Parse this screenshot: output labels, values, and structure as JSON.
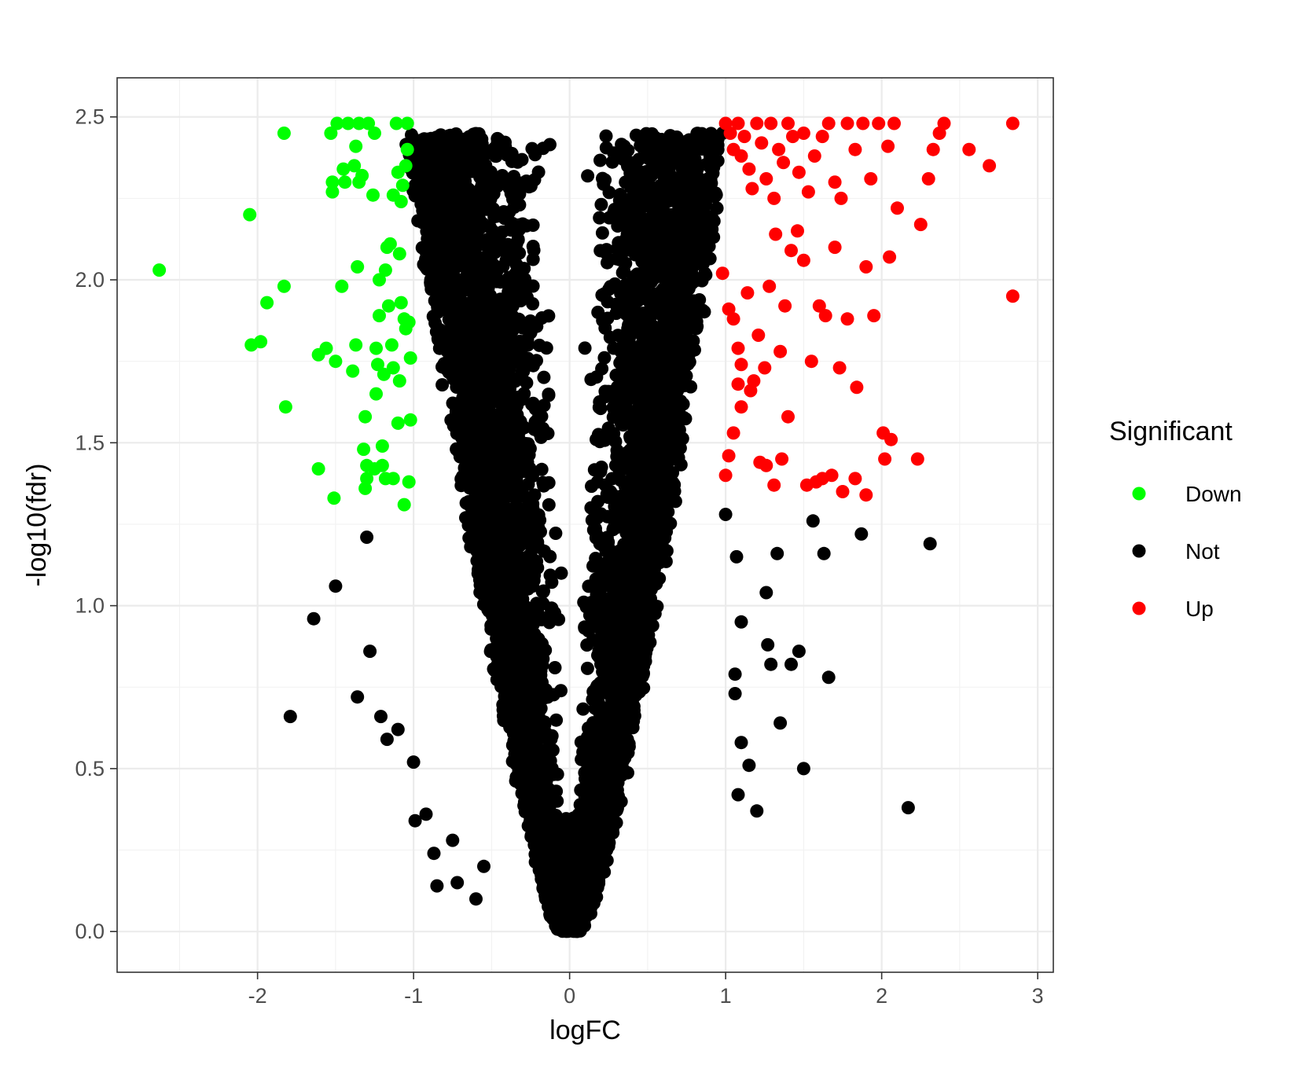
{
  "chart_data": {
    "type": "scatter",
    "title": "",
    "xlabel": "logFC",
    "ylabel": "-log10(fdr)",
    "xlim": [
      -2.9,
      3.1
    ],
    "ylim": [
      -0.125,
      2.62
    ],
    "x_ticks": [
      -2,
      -1,
      0,
      1,
      2,
      3
    ],
    "x_tick_labels": [
      "-2",
      "-1",
      "0",
      "1",
      "2",
      "3"
    ],
    "y_ticks": [
      0.0,
      0.5,
      1.0,
      1.5,
      2.0,
      2.5
    ],
    "y_tick_labels": [
      "0.0",
      "0.5",
      "1.0",
      "1.5",
      "2.0",
      "2.5"
    ],
    "grid": true,
    "legend": {
      "title": "Significant",
      "position": "right",
      "entries": [
        {
          "label": "Down",
          "color": "#00ff00"
        },
        {
          "label": "Not",
          "color": "#000000"
        },
        {
          "label": "Up",
          "color": "#ff0000"
        }
      ]
    },
    "series": [
      {
        "name": "Down",
        "color": "#00ff00",
        "points": [
          [
            -2.63,
            2.03
          ],
          [
            -2.05,
            2.2
          ],
          [
            -2.04,
            1.8
          ],
          [
            -1.98,
            1.81
          ],
          [
            -1.94,
            1.93
          ],
          [
            -1.83,
            2.45
          ],
          [
            -1.82,
            1.61
          ],
          [
            -1.83,
            1.98
          ],
          [
            -1.61,
            1.42
          ],
          [
            -1.61,
            1.77
          ],
          [
            -1.56,
            1.79
          ],
          [
            -1.53,
            2.45
          ],
          [
            -1.52,
            2.3
          ],
          [
            -1.52,
            2.27
          ],
          [
            -1.51,
            1.33
          ],
          [
            -1.5,
            1.75
          ],
          [
            -1.49,
            2.48
          ],
          [
            -1.46,
            1.98
          ],
          [
            -1.45,
            2.34
          ],
          [
            -1.44,
            2.3
          ],
          [
            -1.42,
            2.48
          ],
          [
            -1.39,
            1.72
          ],
          [
            -1.38,
            2.35
          ],
          [
            -1.37,
            1.8
          ],
          [
            -1.37,
            2.41
          ],
          [
            -1.36,
            2.04
          ],
          [
            -1.35,
            2.48
          ],
          [
            -1.35,
            2.3
          ],
          [
            -1.33,
            2.32
          ],
          [
            -1.32,
            1.48
          ],
          [
            -1.31,
            1.36
          ],
          [
            -1.31,
            1.58
          ],
          [
            -1.3,
            1.43
          ],
          [
            -1.3,
            1.39
          ],
          [
            -1.29,
            2.48
          ],
          [
            -1.25,
            1.42
          ],
          [
            -1.26,
            2.26
          ],
          [
            -1.25,
            2.45
          ],
          [
            -1.24,
            1.79
          ],
          [
            -1.24,
            1.65
          ],
          [
            -1.23,
            1.74
          ],
          [
            -1.22,
            1.89
          ],
          [
            -1.22,
            2.0
          ],
          [
            -1.2,
            1.43
          ],
          [
            -1.2,
            1.49
          ],
          [
            -1.19,
            1.71
          ],
          [
            -1.18,
            1.39
          ],
          [
            -1.18,
            2.03
          ],
          [
            -1.17,
            2.1
          ],
          [
            -1.16,
            1.92
          ],
          [
            -1.15,
            2.11
          ],
          [
            -1.14,
            1.8
          ],
          [
            -1.13,
            1.73
          ],
          [
            -1.13,
            1.39
          ],
          [
            -1.13,
            2.26
          ],
          [
            -1.11,
            2.48
          ],
          [
            -1.1,
            1.56
          ],
          [
            -1.1,
            2.33
          ],
          [
            -1.09,
            2.08
          ],
          [
            -1.09,
            1.69
          ],
          [
            -1.08,
            1.93
          ],
          [
            -1.08,
            2.24
          ],
          [
            -1.07,
            2.29
          ],
          [
            -1.06,
            1.88
          ],
          [
            -1.06,
            1.31
          ],
          [
            -1.05,
            1.85
          ],
          [
            -1.05,
            2.35
          ],
          [
            -1.04,
            2.48
          ],
          [
            -1.04,
            2.4
          ],
          [
            -1.03,
            1.38
          ],
          [
            -1.03,
            1.87
          ],
          [
            -1.02,
            1.57
          ],
          [
            -1.02,
            1.76
          ]
        ]
      },
      {
        "name": "Not",
        "color": "#000000",
        "generated": true,
        "seed": 7,
        "cloud_left_edge_x_at_top": -1.0,
        "cloud_right_edge_x_at_top": 0.95,
        "points": [
          [
            -1.79,
            0.66
          ],
          [
            -1.64,
            0.96
          ],
          [
            -1.5,
            1.06
          ],
          [
            -1.36,
            0.72
          ],
          [
            -1.3,
            1.21
          ],
          [
            -1.28,
            0.86
          ],
          [
            -1.21,
            0.66
          ],
          [
            -1.17,
            0.59
          ],
          [
            -1.1,
            0.62
          ],
          [
            -1.0,
            0.52
          ],
          [
            -0.99,
            0.34
          ],
          [
            -0.92,
            0.36
          ],
          [
            -0.87,
            0.24
          ],
          [
            -0.85,
            0.14
          ],
          [
            -0.75,
            0.28
          ],
          [
            -0.72,
            0.15
          ],
          [
            -0.6,
            0.1
          ],
          [
            -0.55,
            0.2
          ],
          [
            -0.95,
            2.39
          ],
          [
            -0.92,
            2.3
          ],
          [
            -0.85,
            2.29
          ],
          [
            -0.78,
            2.26
          ],
          [
            -0.77,
            2.21
          ],
          [
            -0.7,
            2.11
          ],
          [
            -0.64,
            1.99
          ],
          [
            -0.57,
            1.76
          ],
          [
            -0.5,
            1.69
          ],
          [
            -0.46,
            1.51
          ],
          [
            -0.92,
            2.4
          ],
          [
            0.72,
            2.36
          ],
          [
            0.75,
            2.3
          ],
          [
            0.8,
            2.43
          ],
          [
            0.84,
            2.43
          ],
          [
            0.88,
            2.43
          ],
          [
            0.9,
            2.38
          ],
          [
            0.86,
            2.28
          ],
          [
            0.98,
            2.45
          ],
          [
            1.0,
            1.28
          ],
          [
            1.07,
            1.15
          ],
          [
            1.1,
            0.95
          ],
          [
            1.06,
            0.79
          ],
          [
            1.06,
            0.73
          ],
          [
            1.1,
            0.58
          ],
          [
            1.08,
            0.42
          ],
          [
            1.15,
            0.51
          ],
          [
            1.2,
            0.37
          ],
          [
            1.26,
            1.04
          ],
          [
            1.27,
            0.88
          ],
          [
            1.29,
            0.82
          ],
          [
            1.33,
            1.16
          ],
          [
            1.35,
            0.64
          ],
          [
            1.42,
            0.82
          ],
          [
            1.47,
            0.86
          ],
          [
            1.5,
            0.5
          ],
          [
            1.56,
            1.26
          ],
          [
            1.63,
            1.16
          ],
          [
            1.66,
            0.78
          ],
          [
            1.87,
            1.22
          ],
          [
            2.17,
            0.38
          ],
          [
            2.31,
            1.19
          ]
        ]
      },
      {
        "name": "Up",
        "color": "#ff0000",
        "points": [
          [
            1.0,
            2.48
          ],
          [
            1.03,
            2.45
          ],
          [
            1.05,
            2.4
          ],
          [
            1.08,
            2.48
          ],
          [
            1.1,
            2.38
          ],
          [
            1.12,
            2.44
          ],
          [
            1.15,
            2.34
          ],
          [
            1.17,
            2.28
          ],
          [
            1.2,
            2.48
          ],
          [
            1.23,
            2.42
          ],
          [
            1.26,
            2.31
          ],
          [
            1.29,
            2.48
          ],
          [
            1.31,
            2.25
          ],
          [
            1.34,
            2.4
          ],
          [
            1.37,
            2.36
          ],
          [
            1.4,
            2.48
          ],
          [
            1.43,
            2.44
          ],
          [
            1.47,
            2.33
          ],
          [
            1.5,
            2.45
          ],
          [
            1.53,
            2.27
          ],
          [
            1.57,
            2.38
          ],
          [
            1.62,
            2.44
          ],
          [
            1.66,
            2.48
          ],
          [
            1.7,
            2.3
          ],
          [
            1.74,
            2.25
          ],
          [
            1.78,
            2.48
          ],
          [
            1.83,
            2.4
          ],
          [
            1.88,
            2.48
          ],
          [
            1.93,
            2.31
          ],
          [
            1.98,
            2.48
          ],
          [
            2.04,
            2.41
          ],
          [
            2.08,
            2.48
          ],
          [
            2.1,
            2.22
          ],
          [
            2.25,
            2.17
          ],
          [
            2.3,
            2.31
          ],
          [
            2.33,
            2.4
          ],
          [
            2.37,
            2.45
          ],
          [
            2.4,
            2.48
          ],
          [
            2.56,
            2.4
          ],
          [
            2.69,
            2.35
          ],
          [
            2.84,
            2.48
          ],
          [
            2.84,
            1.95
          ],
          [
            0.98,
            2.02
          ],
          [
            1.02,
            1.91
          ],
          [
            1.05,
            1.88
          ],
          [
            1.08,
            1.79
          ],
          [
            1.1,
            1.74
          ],
          [
            1.14,
            1.96
          ],
          [
            1.18,
            1.69
          ],
          [
            1.21,
            1.83
          ],
          [
            1.25,
            1.73
          ],
          [
            1.28,
            1.98
          ],
          [
            1.32,
            2.14
          ],
          [
            1.35,
            1.78
          ],
          [
            1.38,
            1.92
          ],
          [
            1.42,
            2.09
          ],
          [
            1.46,
            2.15
          ],
          [
            1.5,
            2.06
          ],
          [
            1.55,
            1.75
          ],
          [
            1.6,
            1.92
          ],
          [
            1.64,
            1.89
          ],
          [
            1.7,
            2.1
          ],
          [
            1.73,
            1.73
          ],
          [
            1.78,
            1.88
          ],
          [
            1.84,
            1.67
          ],
          [
            1.9,
            2.04
          ],
          [
            1.95,
            1.89
          ],
          [
            2.05,
            2.07
          ],
          [
            1.02,
            1.46
          ],
          [
            1.05,
            1.53
          ],
          [
            1.1,
            1.61
          ],
          [
            1.16,
            1.66
          ],
          [
            1.22,
            1.44
          ],
          [
            1.26,
            1.43
          ],
          [
            1.31,
            1.37
          ],
          [
            1.36,
            1.45
          ],
          [
            1.4,
            1.58
          ],
          [
            1.52,
            1.37
          ],
          [
            1.58,
            1.38
          ],
          [
            1.62,
            1.39
          ],
          [
            1.68,
            1.4
          ],
          [
            1.75,
            1.35
          ],
          [
            1.83,
            1.39
          ],
          [
            1.9,
            1.34
          ],
          [
            2.01,
            1.53
          ],
          [
            2.02,
            1.45
          ],
          [
            2.06,
            1.51
          ],
          [
            2.23,
            1.45
          ],
          [
            1.0,
            1.4
          ],
          [
            1.08,
            1.68
          ]
        ]
      }
    ]
  }
}
